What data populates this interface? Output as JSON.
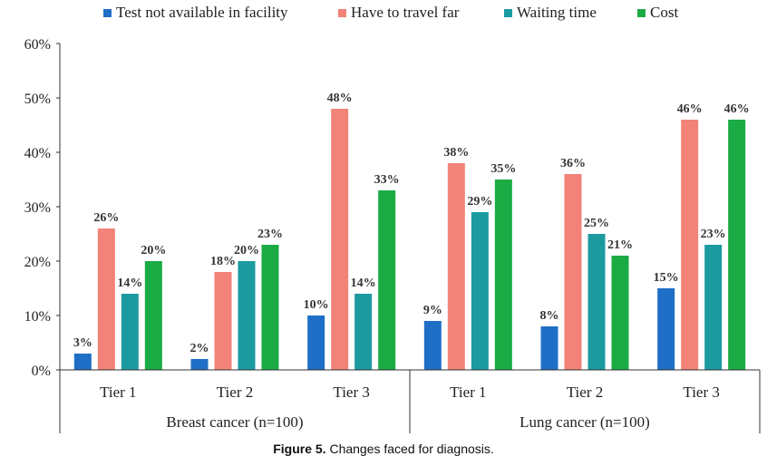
{
  "chart_data": {
    "type": "bar",
    "categories": [
      "Tier 1",
      "Tier 2",
      "Tier 3",
      "Tier 1",
      "Tier 2",
      "Tier 3"
    ],
    "groups": [
      {
        "label": "Breast cancer (n=100)",
        "categories": [
          "Tier 1",
          "Tier 2",
          "Tier 3"
        ]
      },
      {
        "label": "Lung cancer (n=100)",
        "categories": [
          "Tier 1",
          "Tier 2",
          "Tier 3"
        ]
      }
    ],
    "series": [
      {
        "name": "Test not available in facility",
        "color": "#1f6fc6",
        "values": [
          3,
          2,
          10,
          9,
          8,
          15
        ]
      },
      {
        "name": "Have to travel far",
        "color": "#f28378",
        "values": [
          26,
          18,
          48,
          38,
          36,
          46
        ]
      },
      {
        "name": "Waiting time",
        "color": "#1b9aa0",
        "values": [
          14,
          20,
          14,
          29,
          25,
          23
        ]
      },
      {
        "name": "Cost",
        "color": "#1aab45",
        "values": [
          20,
          23,
          33,
          35,
          21,
          46
        ]
      }
    ],
    "ylim": [
      0,
      60
    ],
    "yticks": [
      "0%",
      "10%",
      "20%",
      "30%",
      "40%",
      "50%",
      "60%"
    ],
    "value_suffix": "%",
    "legend": "top",
    "grid": false
  },
  "caption": {
    "label": "Figure 5.",
    "text": " Changes faced for diagnosis."
  }
}
